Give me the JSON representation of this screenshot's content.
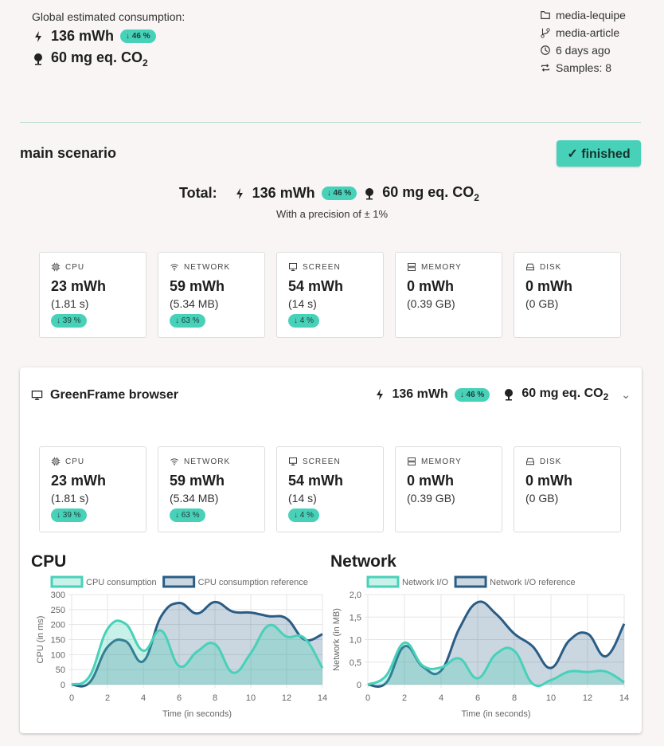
{
  "global": {
    "label": "Global estimated consumption:",
    "energy": "136 mWh",
    "energy_delta": "↓ 46 %",
    "co2": "60 mg eq. CO",
    "co2_sub": "2"
  },
  "meta": {
    "project": "media-lequipe",
    "branch": "media-article",
    "date": "6 days ago",
    "samples": "Samples: 8"
  },
  "scenario": {
    "title": "main scenario",
    "status": "✓ finished",
    "total_label": "Total:",
    "energy": "136 mWh",
    "energy_delta": "↓ 46 %",
    "co2": "60 mg eq. CO",
    "co2_sub": "2",
    "precision": "With a precision of ± 1%"
  },
  "cards": [
    {
      "icon": "cpu-icon",
      "label": "CPU",
      "value": "23 mWh",
      "detail": "(1.81 s)",
      "delta": "↓ 39 %"
    },
    {
      "icon": "wifi-icon",
      "label": "NETWORK",
      "value": "59 mWh",
      "detail": "(5.34 MB)",
      "delta": "↓ 63 %"
    },
    {
      "icon": "monitor-icon",
      "label": "SCREEN",
      "value": "54 mWh",
      "detail": "(14 s)",
      "delta": "↓ 4 %"
    },
    {
      "icon": "memory-icon",
      "label": "MEMORY",
      "value": "0 mWh",
      "detail": "(0.39 GB)",
      "delta": null
    },
    {
      "icon": "disk-icon",
      "label": "DISK",
      "value": "0 mWh",
      "detail": "(0 GB)",
      "delta": null
    }
  ],
  "browser": {
    "title": "GreenFrame browser",
    "energy": "136 mWh",
    "energy_delta": "↓ 46 %",
    "co2": "60 mg eq. CO",
    "co2_sub": "2"
  },
  "colors": {
    "accent": "#48d1b9",
    "reference": "#2a5d85"
  },
  "chart_data": [
    {
      "type": "area",
      "title": "CPU",
      "xlabel": "Time (in seconds)",
      "ylabel": "CPU (in ms)",
      "x": [
        0,
        1,
        2,
        3,
        4,
        5,
        6,
        7,
        8,
        9,
        10,
        11,
        12,
        13,
        14
      ],
      "xticks": [
        "0",
        "2",
        "4",
        "6",
        "8",
        "10",
        "12",
        "14"
      ],
      "yticks": [
        "0",
        "50",
        "100",
        "150",
        "200",
        "250",
        "300"
      ],
      "ylim": [
        0,
        300
      ],
      "legend": "top",
      "series": [
        {
          "name": "CPU consumption",
          "values": [
            0,
            28,
            185,
            203,
            113,
            180,
            62,
            110,
            135,
            40,
            105,
            197,
            160,
            155,
            55
          ]
        },
        {
          "name": "CPU consumption reference",
          "values": [
            0,
            7,
            125,
            145,
            78,
            228,
            272,
            237,
            275,
            243,
            240,
            228,
            220,
            150,
            168
          ]
        }
      ]
    },
    {
      "type": "area",
      "title": "Network",
      "xlabel": "Time (in seconds)",
      "ylabel": "Network (in MB)",
      "x": [
        0,
        1,
        2,
        3,
        4,
        5,
        6,
        7,
        8,
        9,
        10,
        11,
        12,
        13,
        14
      ],
      "xticks": [
        "0",
        "2",
        "4",
        "6",
        "8",
        "10",
        "12",
        "14"
      ],
      "yticks": [
        "0",
        "0,5",
        "1,0",
        "1,5",
        "2,0"
      ],
      "ylim": [
        0,
        2
      ],
      "legend": "top",
      "series": [
        {
          "name": "Network I/O",
          "values": [
            0,
            0.2,
            0.93,
            0.42,
            0.38,
            0.58,
            0.14,
            0.68,
            0.75,
            0.02,
            0.1,
            0.29,
            0.28,
            0.29,
            0.05
          ]
        },
        {
          "name": "Network I/O reference",
          "values": [
            0,
            0.04,
            0.85,
            0.4,
            0.31,
            1.25,
            1.83,
            1.57,
            1.13,
            0.85,
            0.37,
            0.98,
            1.13,
            0.63,
            1.35
          ]
        }
      ]
    }
  ]
}
